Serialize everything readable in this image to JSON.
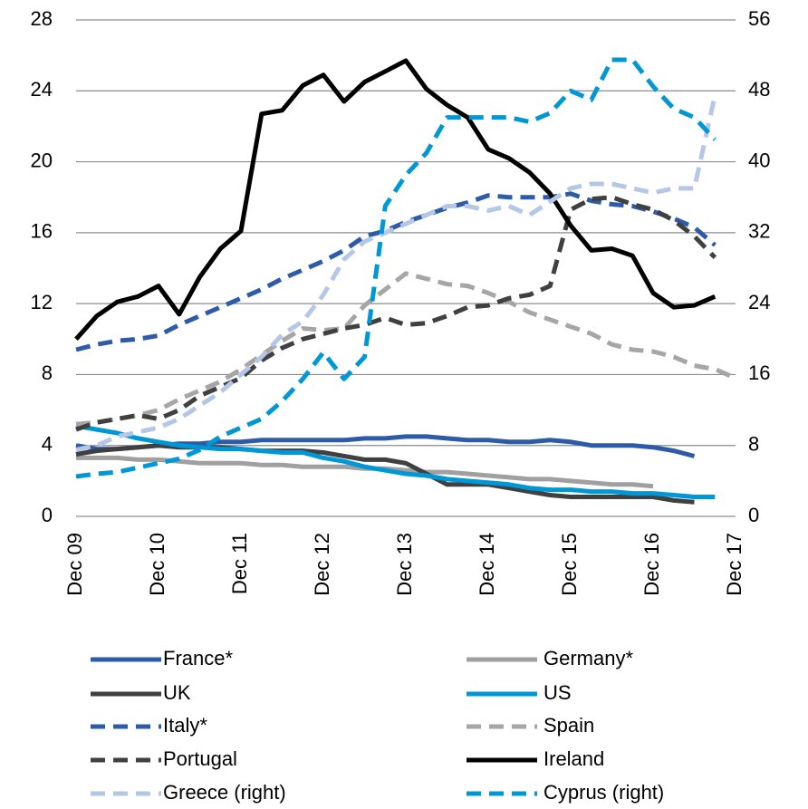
{
  "chart_data": {
    "type": "line",
    "categories": [
      "Dec 09",
      null,
      null,
      null,
      "Dec 10",
      null,
      null,
      null,
      "Dec 11",
      null,
      null,
      null,
      "Dec 12",
      null,
      null,
      null,
      "Dec 13",
      null,
      null,
      null,
      "Dec 14",
      null,
      null,
      null,
      "Dec 15",
      null,
      null,
      null,
      "Dec 16",
      null,
      null,
      null,
      "Dec 17"
    ],
    "ylim": [
      0,
      28
    ],
    "yticks": [
      0,
      4,
      8,
      12,
      16,
      20,
      24,
      28
    ],
    "y2lim": [
      0,
      56
    ],
    "y2ticks": [
      0,
      8,
      16,
      24,
      32,
      40,
      48,
      56
    ],
    "grid": true,
    "series": [
      {
        "name": "France*",
        "color": "#2e5ba8",
        "dashed": false,
        "values": [
          4.0,
          3.8,
          3.8,
          3.9,
          4.0,
          4.1,
          4.1,
          4.2,
          4.2,
          4.3,
          4.3,
          4.3,
          4.3,
          4.3,
          4.4,
          4.4,
          4.5,
          4.5,
          4.4,
          4.3,
          4.3,
          4.2,
          4.2,
          4.3,
          4.2,
          4.0,
          4.0,
          4.0,
          3.9,
          3.7,
          3.4,
          null,
          null
        ]
      },
      {
        "name": "Germany*",
        "color": "#a0a0a0",
        "dashed": false,
        "values": [
          3.3,
          3.3,
          3.3,
          3.2,
          3.2,
          3.1,
          3.0,
          3.0,
          3.0,
          2.9,
          2.9,
          2.8,
          2.8,
          2.8,
          2.7,
          2.7,
          2.6,
          2.5,
          2.5,
          2.4,
          2.3,
          2.2,
          2.1,
          2.1,
          2.0,
          1.9,
          1.8,
          1.8,
          1.7,
          null,
          null,
          null,
          null
        ]
      },
      {
        "name": "UK",
        "color": "#404040",
        "dashed": false,
        "values": [
          3.5,
          3.7,
          3.8,
          3.9,
          4.0,
          3.9,
          3.9,
          3.9,
          3.8,
          3.7,
          3.7,
          3.7,
          3.6,
          3.4,
          3.2,
          3.2,
          3.0,
          2.4,
          1.8,
          1.8,
          1.8,
          1.6,
          1.4,
          1.2,
          1.1,
          1.1,
          1.1,
          1.1,
          1.1,
          0.9,
          0.8,
          null,
          null
        ]
      },
      {
        "name": "US",
        "color": "#0097d6",
        "dashed": false,
        "values": [
          5.1,
          4.9,
          4.7,
          4.4,
          4.2,
          4.0,
          3.9,
          3.8,
          3.8,
          3.7,
          3.6,
          3.6,
          3.3,
          3.1,
          2.8,
          2.6,
          2.4,
          2.3,
          2.1,
          2.0,
          1.9,
          1.8,
          1.6,
          1.5,
          1.5,
          1.4,
          1.4,
          1.3,
          1.3,
          1.2,
          1.1,
          1.1,
          null
        ]
      },
      {
        "name": "Italy*",
        "color": "#2e5ba8",
        "dashed": true,
        "values": [
          9.4,
          9.7,
          9.9,
          10.0,
          10.2,
          10.8,
          11.3,
          11.8,
          12.3,
          12.8,
          13.4,
          13.9,
          14.4,
          15.0,
          15.8,
          16.1,
          16.6,
          17.0,
          17.4,
          17.7,
          18.1,
          18.0,
          18.0,
          18.0,
          18.2,
          17.8,
          17.6,
          17.5,
          17.2,
          16.8,
          16.3,
          15.3,
          null
        ]
      },
      {
        "name": "Spain",
        "color": "#a6a6a6",
        "dashed": true,
        "values": [
          5.2,
          5.3,
          5.5,
          5.7,
          6.0,
          6.6,
          7.1,
          7.6,
          8.3,
          9.1,
          9.9,
          10.6,
          10.5,
          10.6,
          11.9,
          12.8,
          13.7,
          13.4,
          13.1,
          13.0,
          12.6,
          12.1,
          11.5,
          11.1,
          10.7,
          10.3,
          9.7,
          9.4,
          9.3,
          9.0,
          8.5,
          8.3,
          7.8
        ]
      },
      {
        "name": "Portugal",
        "color": "#404040",
        "dashed": true,
        "values": [
          4.9,
          5.3,
          5.5,
          5.7,
          5.5,
          6.0,
          6.8,
          7.3,
          7.8,
          8.8,
          9.5,
          10.0,
          10.3,
          10.6,
          10.8,
          11.2,
          10.8,
          10.9,
          11.3,
          11.8,
          11.9,
          12.3,
          12.5,
          13.0,
          17.3,
          17.9,
          18.0,
          17.6,
          17.3,
          16.7,
          15.8,
          14.6,
          null
        ]
      },
      {
        "name": "Ireland",
        "color": "#000000",
        "dashed": false,
        "values": [
          10.0,
          11.3,
          12.1,
          12.4,
          13.0,
          11.4,
          13.5,
          15.1,
          16.1,
          22.7,
          22.9,
          24.3,
          24.9,
          23.4,
          24.5,
          25.1,
          25.7,
          24.1,
          23.2,
          22.5,
          20.7,
          20.2,
          19.4,
          18.2,
          16.4,
          15.0,
          15.1,
          14.7,
          12.6,
          11.8,
          11.9,
          12.4,
          null
        ]
      },
      {
        "name": "Greece (right)",
        "color": "#b4c7e7",
        "dashed": true,
        "axis": "y2",
        "values": [
          7.5,
          8,
          9,
          9.5,
          10,
          11,
          12.5,
          14,
          16,
          18,
          20.5,
          22,
          25,
          29,
          31,
          32,
          33,
          34,
          35,
          35,
          34.5,
          35,
          34,
          35.5,
          37,
          37.5,
          37.5,
          37,
          36.5,
          37,
          37,
          47.5,
          null
        ]
      },
      {
        "name": "Cyprus (right)",
        "color": "#0097d6",
        "dashed": true,
        "axis": "y2",
        "values": [
          4.5,
          4.8,
          5,
          5.5,
          6,
          6.5,
          7.5,
          9,
          10,
          11,
          13,
          15.5,
          18.5,
          15.5,
          18,
          35,
          38.5,
          41,
          45,
          45,
          45,
          45,
          44.5,
          45.5,
          48,
          47,
          51.5,
          51.5,
          48.5,
          46,
          45,
          42.5,
          null
        ]
      }
    ]
  }
}
